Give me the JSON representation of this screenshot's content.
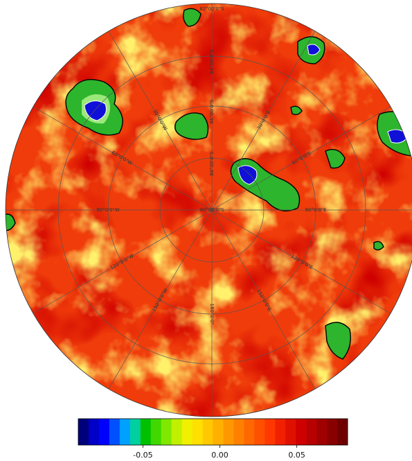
{
  "map": {
    "latitude_labels": [
      "82°00'0\"S",
      "84°00'0\"S",
      "86°00'0\"S",
      "88°00'0\"S"
    ],
    "center_label": "90°00'0\"S",
    "longitude_labels": [
      "30°0'0\"E",
      "60°0'0\"E",
      "90°0'0\"E",
      "120°0'0\"E",
      "150°0'0\"E",
      "180°0'0\"",
      "150°0'0\"W",
      "120°0'0\"W",
      "90°0'0\"W",
      "60°0'0\"W",
      "30°0'0\"W"
    ]
  },
  "colorbar": {
    "lim": [
      -0.092,
      0.083
    ],
    "ticks": [
      -0.05,
      {
        "value": 0,
        "label": "0.00"
      },
      0.05
    ],
    "colors": [
      "#00007a",
      "#0000c8",
      "#0000ff",
      "#0050ff",
      "#00a0ff",
      "#00d0a0",
      "#00c000",
      "#40d800",
      "#80e800",
      "#c0f000",
      "#f0f000",
      "#ffe000",
      "#ffc800",
      "#ffb000",
      "#ff9800",
      "#ff8000",
      "#ff6800",
      "#ff5000",
      "#ff3800",
      "#f02000",
      "#e01000",
      "#d00000",
      "#b80000",
      "#a00000",
      "#880000",
      "#700000"
    ]
  }
}
